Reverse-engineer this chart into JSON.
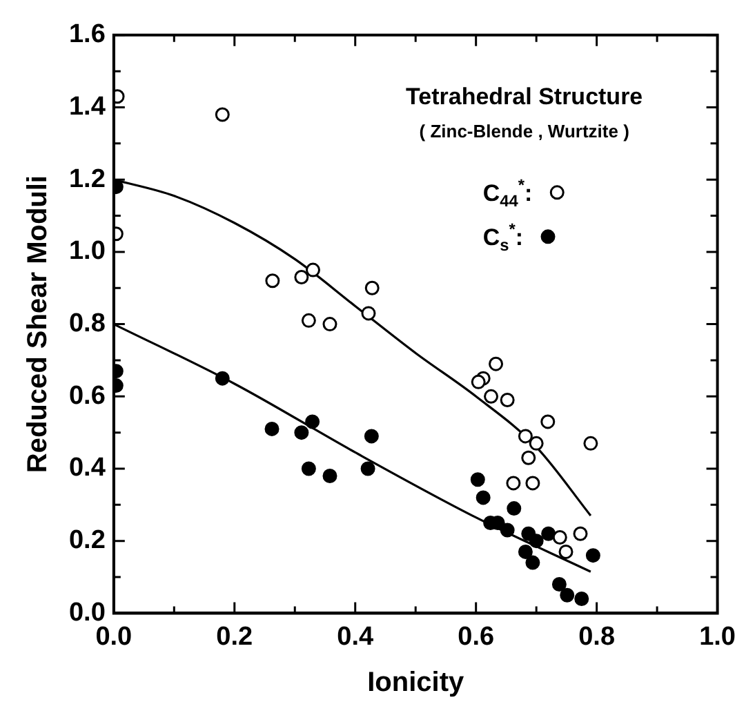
{
  "chart_data": {
    "type": "scatter",
    "xlabel": "Ionicity",
    "ylabel": "Reduced Shear Moduli",
    "annotations": [
      "Tetrahedral Structure",
      "( Zinc-Blende , Wurtzite )"
    ],
    "xlim": [
      0,
      1
    ],
    "ylim": [
      0,
      1.6
    ],
    "xticks": [
      {
        "value": 0,
        "label": "0.0"
      },
      {
        "value": 0.1,
        "label": null
      },
      {
        "value": 0.2,
        "label": "0.2"
      },
      {
        "value": 0.3,
        "label": null
      },
      {
        "value": 0.4,
        "label": "0.4"
      },
      {
        "value": 0.5,
        "label": null
      },
      {
        "value": 0.6,
        "label": "0.6"
      },
      {
        "value": 0.7,
        "label": null
      },
      {
        "value": 0.8,
        "label": "0.8"
      },
      {
        "value": 0.9,
        "label": null
      },
      {
        "value": 1,
        "label": "1.0"
      }
    ],
    "yticks": [
      {
        "value": 0,
        "label": "0.0"
      },
      {
        "value": 0.1,
        "label": null
      },
      {
        "value": 0.2,
        "label": "0.2"
      },
      {
        "value": 0.3,
        "label": null
      },
      {
        "value": 0.4,
        "label": "0.4"
      },
      {
        "value": 0.5,
        "label": null
      },
      {
        "value": 0.6,
        "label": "0.6"
      },
      {
        "value": 0.7,
        "label": null
      },
      {
        "value": 0.8,
        "label": "0.8"
      },
      {
        "value": 0.9,
        "label": null
      },
      {
        "value": 1,
        "label": "1.0"
      },
      {
        "value": 1.1,
        "label": null
      },
      {
        "value": 1.2,
        "label": "1.2"
      },
      {
        "value": 1.3,
        "label": null
      },
      {
        "value": 1.4,
        "label": "1.4"
      },
      {
        "value": 1.5,
        "label": null
      },
      {
        "value": 1.6,
        "label": "1.6"
      }
    ],
    "grid": false,
    "legend": "top right",
    "marker": "circle",
    "series": [
      {
        "name": "C$_{44}$$^{*}$:",
        "color": "#000000",
        "x": [
          0.006,
          0.18,
          0.004,
          0.263,
          0.311,
          0.33,
          0.428,
          0.323,
          0.358,
          0.422,
          0.633,
          0.612,
          0.604,
          0.625,
          0.652,
          0.719,
          0.79,
          0.682,
          0.7,
          0.687,
          0.662,
          0.694,
          0.739,
          0.773,
          0.749
        ],
        "values": [
          1.43,
          1.38,
          1.05,
          0.92,
          0.93,
          0.95,
          0.9,
          0.81,
          0.8,
          0.83,
          0.69,
          0.65,
          0.64,
          0.6,
          0.59,
          0.53,
          0.47,
          0.49,
          0.47,
          0.43,
          0.36,
          0.36,
          0.21,
          0.22,
          0.17
        ]
      },
      {
        "name": "C$_{s}$$^{*}$:",
        "color": "#000000",
        "x": [
          0.004,
          0.004,
          0.004,
          0.18,
          0.262,
          0.311,
          0.329,
          0.323,
          0.358,
          0.427,
          0.421,
          0.603,
          0.612,
          0.663,
          0.624,
          0.636,
          0.652,
          0.687,
          0.7,
          0.72,
          0.682,
          0.694,
          0.794,
          0.738,
          0.751,
          0.775
        ],
        "values": [
          1.18,
          0.67,
          0.63,
          0.65,
          0.51,
          0.5,
          0.53,
          0.4,
          0.38,
          0.49,
          0.4,
          0.37,
          0.32,
          0.29,
          0.25,
          0.25,
          0.23,
          0.22,
          0.2,
          0.22,
          0.17,
          0.14,
          0.16,
          0.08,
          0.05,
          0.04
        ]
      },
      {
        "type": "line",
        "color": "#000000",
        "marker": "none",
        "x": [
          0,
          0.1,
          0.2,
          0.3,
          0.4,
          0.5,
          0.6,
          0.7,
          0.79
        ],
        "values": [
          1.2,
          1.155,
          1.08,
          0.98,
          0.85,
          0.72,
          0.6,
          0.46,
          0.27
        ]
      },
      {
        "type": "line",
        "color": "#000000",
        "marker": "none",
        "x": [
          0,
          0.2,
          0.4,
          0.6,
          0.79
        ],
        "values": [
          0.8,
          0.635,
          0.445,
          0.265,
          0.115
        ]
      }
    ]
  }
}
